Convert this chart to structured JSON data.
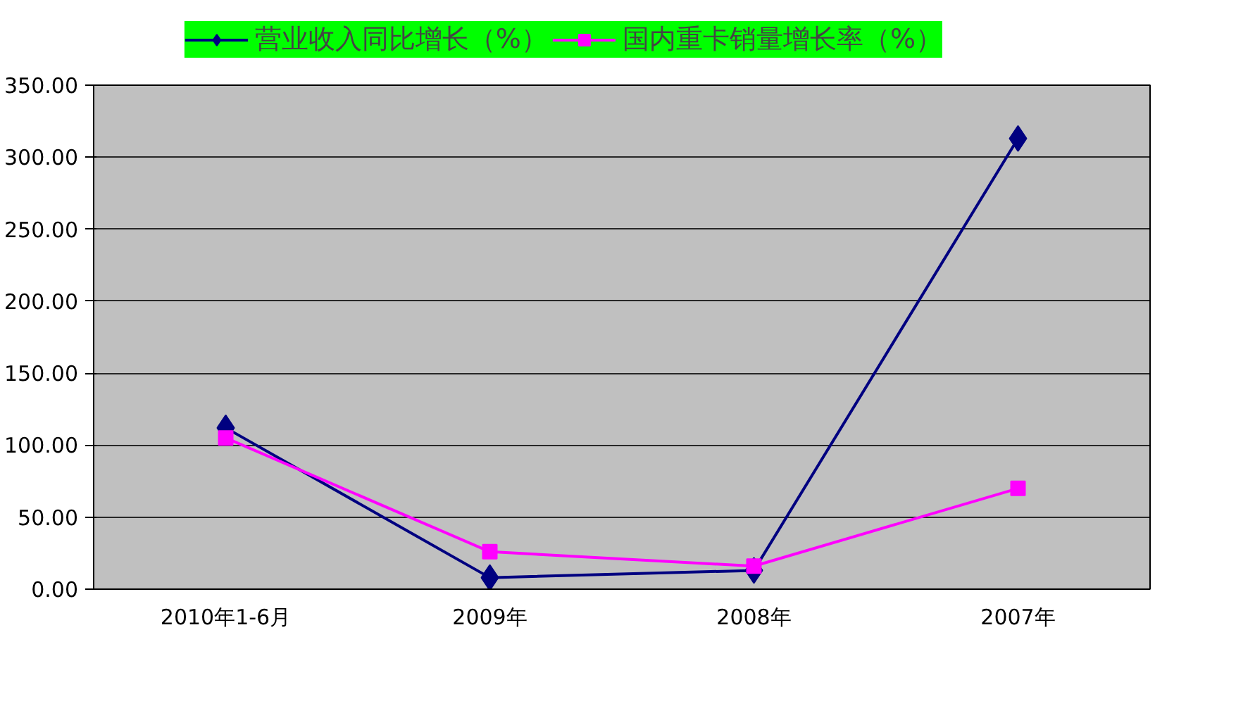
{
  "chart_data": {
    "type": "line",
    "categories": [
      "2010年1-6月",
      "2009年",
      "2008年",
      "2007年"
    ],
    "series": [
      {
        "name": "营业收入同比增长（%）",
        "color": "#000080",
        "marker": "diamond",
        "values": [
          112,
          8,
          13,
          313
        ]
      },
      {
        "name": "国内重卡销量增长率（%）",
        "color": "#ff00ff",
        "marker": "square",
        "values": [
          105,
          26,
          16,
          70
        ]
      }
    ],
    "ylim": [
      0,
      350
    ],
    "yticks": [
      {
        "value": 0,
        "label": "0.00"
      },
      {
        "value": 50,
        "label": "50.00"
      },
      {
        "value": 100,
        "label": "100.00"
      },
      {
        "value": 150,
        "label": "150.00"
      },
      {
        "value": 200,
        "label": "200.00"
      },
      {
        "value": 250,
        "label": "250.00"
      },
      {
        "value": 300,
        "label": "300.00"
      },
      {
        "value": 350,
        "label": "350.00"
      }
    ],
    "grid": "y",
    "legend": "top",
    "line_style": "solid"
  }
}
